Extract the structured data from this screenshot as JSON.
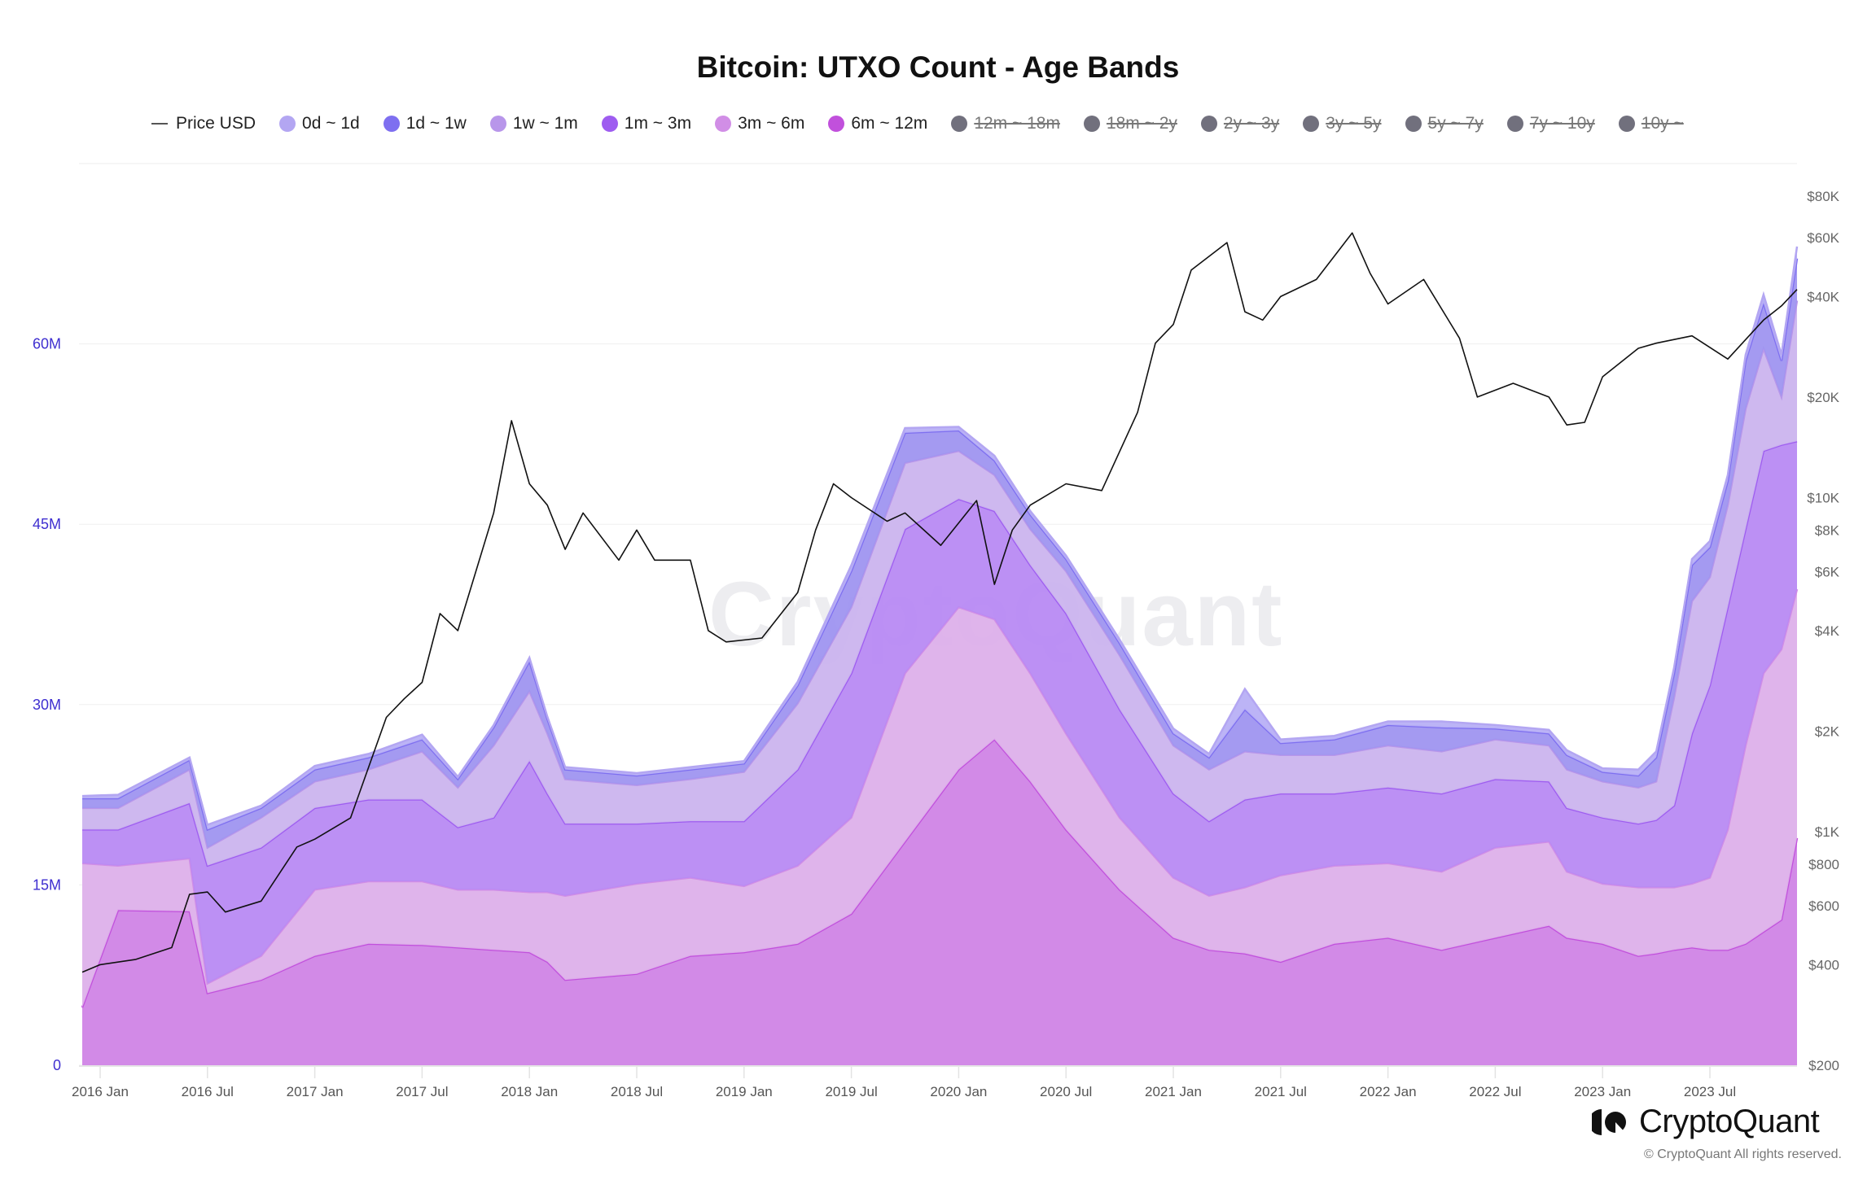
{
  "chart_data": {
    "type": "area",
    "stacked": true,
    "title": "Bitcoin: UTXO Count - Age Bands",
    "legend_position": "top",
    "grid": true,
    "x_ticks": [
      "2016 Jan",
      "2016 Jul",
      "2017 Jan",
      "2017 Jul",
      "2018 Jan",
      "2018 Jul",
      "2019 Jan",
      "2019 Jul",
      "2020 Jan",
      "2020 Jul",
      "2021 Jan",
      "2021 Jul",
      "2022 Jan",
      "2022 Jul",
      "2023 Jan",
      "2023 Jul"
    ],
    "y_left": {
      "ylim": [
        0,
        75
      ],
      "unit": "M",
      "ticks": [
        "0",
        "15M",
        "30M",
        "45M",
        "60M"
      ],
      "tick_values": [
        0,
        15,
        30,
        45,
        60
      ]
    },
    "y_right": {
      "scale": "log",
      "ylim": [
        200,
        100000
      ],
      "ticks": [
        "$200",
        "$400",
        "$600",
        "$800",
        "$1K",
        "$2K",
        "$4K",
        "$6K",
        "$8K",
        "$10K",
        "$20K",
        "$40K",
        "$60K",
        "$80K"
      ],
      "tick_values": [
        200,
        400,
        600,
        800,
        1000,
        2000,
        4000,
        6000,
        8000,
        10000,
        20000,
        40000,
        60000,
        80000
      ]
    },
    "dates": [
      "2015-12",
      "2016-02",
      "2016-06",
      "2016-07",
      "2016-10",
      "2017-01",
      "2017-04",
      "2017-07",
      "2017-09",
      "2017-11",
      "2018-01",
      "2018-02",
      "2018-03",
      "2018-07",
      "2018-10",
      "2019-01",
      "2019-04",
      "2019-07",
      "2019-10",
      "2020-01",
      "2020-03",
      "2020-05",
      "2020-07",
      "2020-10",
      "2021-01",
      "2021-03",
      "2021-05",
      "2021-07",
      "2021-10",
      "2022-01",
      "2022-04",
      "2022-07",
      "2022-10",
      "2022-11",
      "2023-01",
      "2023-03",
      "2023-04",
      "2023-05",
      "2023-06",
      "2023-07",
      "2023-08",
      "2023-09",
      "2023-10",
      "2023-11",
      "2023-12"
    ],
    "series": [
      {
        "name": "6m ~ 12m",
        "color": "#c150dc",
        "fill": "#d084e6",
        "visible": true,
        "values": [
          4.8,
          12.9,
          12.8,
          6.0,
          7.1,
          9.1,
          10.1,
          10.0,
          9.8,
          9.6,
          9.4,
          8.6,
          7.1,
          7.6,
          9.1,
          9.4,
          10.1,
          12.6,
          18.6,
          24.6,
          27.1,
          23.6,
          19.6,
          14.6,
          10.6,
          9.6,
          9.3,
          8.6,
          10.1,
          10.6,
          9.6,
          10.6,
          11.6,
          10.6,
          10.1,
          9.1,
          9.3,
          9.6,
          9.8,
          9.6,
          9.6,
          10.1,
          11.1,
          12.1,
          18.9
        ]
      },
      {
        "name": "3m ~ 6m",
        "color": "#d18ee6",
        "fill": "#ddb0ea",
        "visible": true,
        "values": [
          12.0,
          3.7,
          4.4,
          0.8,
          2.0,
          5.5,
          5.2,
          5.3,
          4.8,
          5.0,
          5.0,
          5.8,
          7.0,
          7.5,
          6.5,
          5.5,
          6.5,
          8.0,
          14.0,
          13.5,
          10.0,
          9.0,
          8.0,
          6.0,
          5.0,
          4.5,
          5.5,
          7.2,
          6.5,
          6.2,
          6.5,
          7.5,
          7.0,
          5.5,
          5.0,
          5.7,
          5.5,
          5.2,
          5.3,
          6.0,
          10.0,
          16.5,
          21.5,
          22.5,
          20.7
        ]
      },
      {
        "name": "1m ~ 3m",
        "color": "#9e5cf0",
        "fill": "#b88af3",
        "visible": true,
        "values": [
          2.8,
          3.0,
          4.6,
          9.8,
          9.0,
          6.8,
          6.8,
          6.8,
          5.2,
          6.0,
          10.9,
          8.2,
          6.0,
          5.0,
          4.7,
          5.4,
          8.0,
          12.0,
          12.0,
          9.0,
          9.0,
          9.0,
          10.0,
          9.0,
          7.0,
          6.2,
          7.3,
          6.8,
          6.0,
          6.3,
          6.5,
          5.7,
          5.0,
          5.3,
          5.5,
          5.3,
          5.6,
          6.8,
          12.5,
          16.0,
          18.5,
          18.0,
          18.5,
          17.0,
          12.3
        ]
      },
      {
        "name": "1w ~ 1m",
        "color": "#b896ea",
        "fill": "#cbb4ee",
        "visible": true,
        "values": [
          1.8,
          1.8,
          2.8,
          1.5,
          2.5,
          2.2,
          2.5,
          4.0,
          3.3,
          6.0,
          5.8,
          5.0,
          3.7,
          3.2,
          3.5,
          4.1,
          5.5,
          5.5,
          5.5,
          4.0,
          3.0,
          3.0,
          3.5,
          4.5,
          4.0,
          4.3,
          4.0,
          3.2,
          3.2,
          3.5,
          3.5,
          3.3,
          3.0,
          3.2,
          3.0,
          3.0,
          3.2,
          9.0,
          11.0,
          9.0,
          8.5,
          10.0,
          8.5,
          4.0,
          11.7
        ]
      },
      {
        "name": "1d ~ 1w",
        "color": "#7e6ff0",
        "fill": "#9f95f0",
        "visible": true,
        "values": [
          0.8,
          0.8,
          0.8,
          1.5,
          0.8,
          1.0,
          1.0,
          1.0,
          0.7,
          1.5,
          2.5,
          1.2,
          0.8,
          0.8,
          0.8,
          0.7,
          1.5,
          3.0,
          2.5,
          1.7,
          1.2,
          1.2,
          1.0,
          1.0,
          1.0,
          1.0,
          3.5,
          1.0,
          1.3,
          1.7,
          2.0,
          0.9,
          1.0,
          1.2,
          0.8,
          1.0,
          2.0,
          2.0,
          3.0,
          2.5,
          2.0,
          4.0,
          3.8,
          3.0,
          3.5
        ]
      },
      {
        "name": "0d ~ 1d",
        "color": "#b3a6f2",
        "fill": "#b8b0f5",
        "visible": true,
        "values": [
          0.2,
          0.3,
          0.2,
          0.4,
          0.2,
          0.3,
          0.3,
          0.4,
          0.2,
          0.2,
          0.3,
          0.2,
          0.2,
          0.2,
          0.2,
          0.2,
          0.3,
          0.5,
          0.4,
          0.3,
          0.4,
          0.3,
          0.3,
          0.3,
          0.4,
          0.3,
          1.7,
          0.3,
          0.3,
          0.3,
          0.5,
          0.3,
          0.3,
          0.4,
          0.3,
          0.5,
          0.5,
          0.5,
          0.5,
          0.5,
          0.5,
          0.5,
          0.7,
          0.5,
          1.0
        ]
      }
    ],
    "hidden_series": [
      {
        "name": "12m ~ 18m",
        "color": "#71707d",
        "visible": false
      },
      {
        "name": "18m ~ 2y",
        "color": "#71707d",
        "visible": false
      },
      {
        "name": "2y ~ 3y",
        "color": "#71707d",
        "visible": false
      },
      {
        "name": "3y ~ 5y",
        "color": "#71707d",
        "visible": false
      },
      {
        "name": "5y ~ 7y",
        "color": "#71707d",
        "visible": false
      },
      {
        "name": "7y ~ 10y",
        "color": "#71707d",
        "visible": false
      },
      {
        "name": "10y ~",
        "color": "#71707d",
        "visible": false
      }
    ],
    "price": {
      "name": "Price USD",
      "color": "#111111",
      "axis": "right",
      "dates": [
        "2015-12",
        "2016-01",
        "2016-03",
        "2016-05",
        "2016-06",
        "2016-07",
        "2016-08",
        "2016-10",
        "2016-12",
        "2017-01",
        "2017-03",
        "2017-05",
        "2017-06",
        "2017-07",
        "2017-08",
        "2017-09",
        "2017-10",
        "2017-11",
        "2017-12",
        "2018-01",
        "2018-02",
        "2018-03",
        "2018-04",
        "2018-06",
        "2018-07",
        "2018-08",
        "2018-10",
        "2018-11",
        "2018-12",
        "2019-02",
        "2019-04",
        "2019-05",
        "2019-06",
        "2019-07",
        "2019-09",
        "2019-10",
        "2019-12",
        "2020-02",
        "2020-03",
        "2020-04",
        "2020-05",
        "2020-07",
        "2020-09",
        "2020-11",
        "2020-12",
        "2021-01",
        "2021-02",
        "2021-04",
        "2021-05",
        "2021-06",
        "2021-07",
        "2021-09",
        "2021-11",
        "2021-12",
        "2022-01",
        "2022-03",
        "2022-05",
        "2022-06",
        "2022-08",
        "2022-10",
        "2022-11",
        "2022-12",
        "2023-01",
        "2023-03",
        "2023-04",
        "2023-06",
        "2023-08",
        "2023-10",
        "2023-11",
        "2023-12"
      ],
      "values": [
        380,
        400,
        415,
        450,
        650,
        660,
        575,
        620,
        900,
        950,
        1100,
        2200,
        2500,
        2800,
        4500,
        4000,
        6000,
        9000,
        17000,
        11000,
        9500,
        7000,
        9000,
        6500,
        8000,
        6500,
        6500,
        4000,
        3700,
        3800,
        5200,
        8000,
        11000,
        10000,
        8500,
        9000,
        7200,
        9800,
        5500,
        8000,
        9500,
        11000,
        10500,
        18000,
        29000,
        33000,
        48000,
        58000,
        36000,
        34000,
        40000,
        45000,
        62000,
        47000,
        38000,
        45000,
        30000,
        20000,
        22000,
        20000,
        16500,
        16800,
        23000,
        28000,
        29000,
        30500,
        26000,
        34000,
        37500,
        42000
      ]
    }
  },
  "legend": {
    "items": [
      {
        "label": "Price USD",
        "type": "line",
        "color": "#555555",
        "active": true
      },
      {
        "label": "0d ~ 1d",
        "color": "#b3a6f2",
        "active": true
      },
      {
        "label": "1d ~ 1w",
        "color": "#7e6ff0",
        "active": true
      },
      {
        "label": "1w ~ 1m",
        "color": "#b896ea",
        "active": true
      },
      {
        "label": "1m ~ 3m",
        "color": "#9e5cf0",
        "active": true
      },
      {
        "label": "3m ~ 6m",
        "color": "#d18ee6",
        "active": true
      },
      {
        "label": "6m ~ 12m",
        "color": "#c150dc",
        "active": true
      },
      {
        "label": "12m ~ 18m",
        "color": "#71707d",
        "active": false
      },
      {
        "label": "18m ~ 2y",
        "color": "#71707d",
        "active": false
      },
      {
        "label": "2y ~ 3y",
        "color": "#71707d",
        "active": false
      },
      {
        "label": "3y ~ 5y",
        "color": "#71707d",
        "active": false
      },
      {
        "label": "5y ~ 7y",
        "color": "#71707d",
        "active": false
      },
      {
        "label": "7y ~ 10y",
        "color": "#71707d",
        "active": false
      },
      {
        "label": "10y ~",
        "color": "#71707d",
        "active": false
      }
    ]
  },
  "branding": {
    "logo_text": "CryptoQuant",
    "watermark": "CryptoQuant",
    "copyright": "© CryptoQuant All rights reserved."
  }
}
